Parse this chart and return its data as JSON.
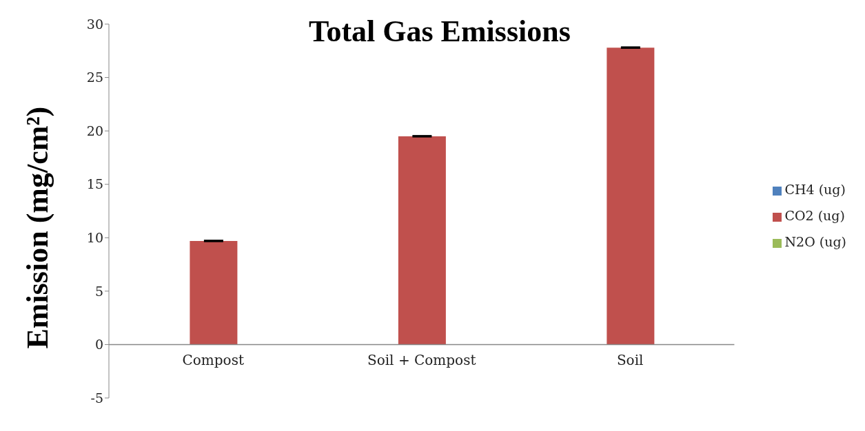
{
  "chart_data": {
    "type": "bar",
    "title": "Total Gas Emissions",
    "ylabel": "Emission (mg/cm²)",
    "categories": [
      "Compost",
      "Soil + Compost",
      "Soil"
    ],
    "series": [
      {
        "name": "CH4 (ug)",
        "color": "#4f81bd",
        "values": [
          0,
          0,
          null
        ]
      },
      {
        "name": "CO2 (ug)",
        "color": "#c0504d",
        "values": [
          9.7,
          19.5,
          27.8
        ],
        "errors": [
          0.05,
          0.05,
          0.05
        ]
      },
      {
        "name": "N2O (ug)",
        "color": "#9bbb59",
        "values": [
          null,
          null,
          null
        ]
      }
    ],
    "ylim": [
      -5,
      30
    ],
    "yticks": [
      -5,
      0,
      5,
      10,
      15,
      20,
      25,
      30
    ],
    "grid": false,
    "legend": "right"
  }
}
